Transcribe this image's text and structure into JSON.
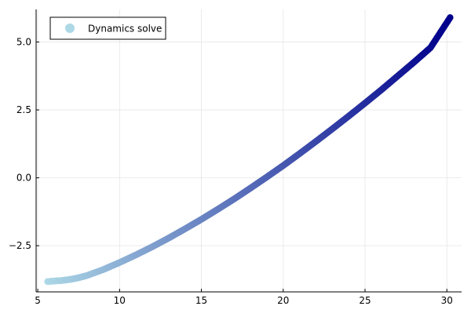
{
  "chart_data": {
    "type": "scatter",
    "title": "",
    "xlabel": "",
    "ylabel": "",
    "xlim": [
      4.9,
      30.9
    ],
    "ylim": [
      -4.2,
      6.2
    ],
    "x_ticks": [
      5,
      10,
      15,
      20,
      25,
      30
    ],
    "x_tick_labels": [
      "5",
      "10",
      "15",
      "20",
      "25",
      "30"
    ],
    "y_ticks": [
      -2.5,
      0,
      2.5,
      5
    ],
    "y_tick_labels": [
      "−2.5",
      "0.0",
      "2.5",
      "5.0"
    ],
    "grid": true,
    "legend_position": "top-left",
    "series": [
      {
        "name": "Dynamics solve",
        "marker": "circle",
        "color_gradient": [
          "#add8e6",
          "#00008b"
        ],
        "x": [
          5.6,
          6.0,
          6.5,
          7.0,
          7.5,
          8.0,
          9.0,
          10.0,
          11.0,
          12.0,
          13.0,
          14.0,
          15.0,
          16.0,
          17.0,
          18.0,
          19.0,
          20.0,
          21.0,
          22.0,
          23.0,
          24.0,
          25.0,
          26.0,
          27.0,
          28.0,
          29.0,
          30.2
        ],
        "y": [
          -3.82,
          -3.8,
          -3.78,
          -3.74,
          -3.68,
          -3.6,
          -3.38,
          -3.12,
          -2.84,
          -2.54,
          -2.22,
          -1.88,
          -1.53,
          -1.16,
          -0.78,
          -0.38,
          0.03,
          0.45,
          0.89,
          1.34,
          1.8,
          2.27,
          2.75,
          3.24,
          3.75,
          4.26,
          4.79,
          5.9
        ]
      }
    ]
  },
  "colors": {
    "axis": "#000000",
    "grid": "#e6e6e6",
    "legend_border": "#000000",
    "legend_background": "#ffffff"
  }
}
